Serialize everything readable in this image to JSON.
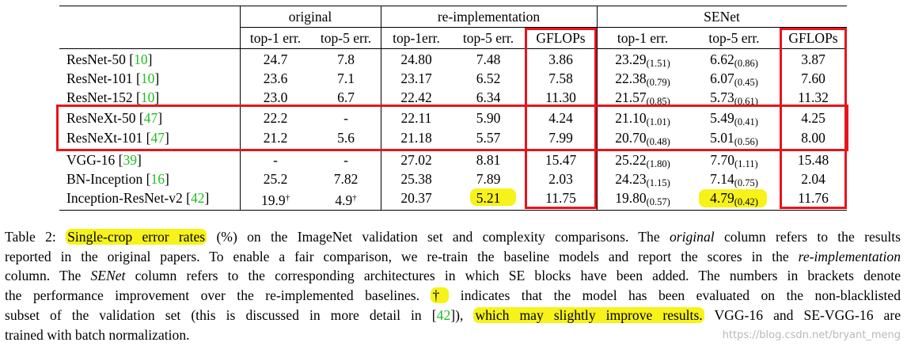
{
  "table": {
    "groups": [
      "original",
      "re-implementation",
      "SENet"
    ],
    "columns": [
      "top-1 err.",
      "top-5 err.",
      "top-1err.",
      "top-5 err.",
      "GFLOPs",
      "top-1 err.",
      "top-5 err.",
      "GFLOPs"
    ],
    "rows": [
      {
        "name": "ResNet-50",
        "ref": "10",
        "orig1": "24.7",
        "orig5": "7.8",
        "re1": "24.80",
        "re5": "7.48",
        "regf": "3.86",
        "se1": "23.29",
        "se1d": "(1.51)",
        "se5": "6.62",
        "se5d": "(0.86)",
        "segf": "3.87"
      },
      {
        "name": "ResNet-101",
        "ref": "10",
        "orig1": "23.6",
        "orig5": "7.1",
        "re1": "23.17",
        "re5": "6.52",
        "regf": "7.58",
        "se1": "22.38",
        "se1d": "(0.79)",
        "se5": "6.07",
        "se5d": "(0.45)",
        "segf": "7.60"
      },
      {
        "name": "ResNet-152",
        "ref": "10",
        "orig1": "23.0",
        "orig5": "6.7",
        "re1": "22.42",
        "re5": "6.34",
        "regf": "11.30",
        "se1": "21.57",
        "se1d": "(0.85)",
        "se5": "5.73",
        "se5d": "(0.61)",
        "segf": "11.32"
      },
      {
        "name": "ResNeXt-50",
        "ref": "47",
        "orig1": "22.2",
        "orig5": "-",
        "re1": "22.11",
        "re5": "5.90",
        "regf": "4.24",
        "se1": "21.10",
        "se1d": "(1.01)",
        "se5": "5.49",
        "se5d": "(0.41)",
        "segf": "4.25"
      },
      {
        "name": "ResNeXt-101",
        "ref": "47",
        "orig1": "21.2",
        "orig5": "5.6",
        "re1": "21.18",
        "re5": "5.57",
        "regf": "7.99",
        "se1": "20.70",
        "se1d": "(0.48)",
        "se5": "5.01",
        "se5d": "(0.56)",
        "segf": "8.00"
      },
      {
        "name": "VGG-16",
        "ref": "39",
        "orig1": "-",
        "orig5": "-",
        "re1": "27.02",
        "re5": "8.81",
        "regf": "15.47",
        "se1": "25.22",
        "se1d": "(1.80)",
        "se5": "7.70",
        "se5d": "(1.11)",
        "segf": "15.48"
      },
      {
        "name": "BN-Inception",
        "ref": "16",
        "orig1": "25.2",
        "orig5": "7.82",
        "re1": "25.38",
        "re5": "7.89",
        "regf": "2.03",
        "se1": "24.23",
        "se1d": "(1.15)",
        "se5": "7.14",
        "se5d": "(0.75)",
        "segf": "2.04"
      },
      {
        "name": "Inception-ResNet-v2",
        "ref": "42",
        "orig1": "19.9",
        "orig5": "4.9",
        "re1": "20.37",
        "re5": "5.21",
        "regf": "11.75",
        "se1": "19.80",
        "se1d": "(0.57)",
        "se5": "4.79",
        "se5d": "(0.42)",
        "segf": "11.76"
      }
    ],
    "dagger": "†",
    "bracket_open": "[",
    "bracket_close": "]"
  },
  "caption": {
    "label": "Table 2:",
    "hl1": "Single-crop error rates",
    "p1": " (%) on the ImageNet validation set and complexity comparisons. The ",
    "orig_word": "original",
    "p2": " column refers to the results",
    "line2a": "reported in the original papers. To enable a fair comparison, we re-train the baseline models and report the scores in the ",
    "reimpl_word": "re-implementation",
    "line3a": "column. The ",
    "senet_word": "SENet",
    "line3b": " column refers to the corresponding architectures in which SE blocks have been added. The numbers in brackets denote",
    "line4a": "the performance improvement over the re-implemented baselines. ",
    "dagger": "†",
    "line4b": " indicates that the model has been evaluated on the non-blacklisted",
    "line5a": "subset of the validation set (this is discussed in more detail in [",
    "ref": "42",
    "line5b": "]), ",
    "hl2": "which may slightly improve results.",
    "line5c": " VGG-16 and SE-VGG-16 are",
    "line6": "trained with batch normalization."
  },
  "watermark": "https://blog.csdn.net/bryant_meng",
  "colors": {
    "box": "#e8141c",
    "highlight": "#f7f21a",
    "ref": "#1fbf1f"
  }
}
